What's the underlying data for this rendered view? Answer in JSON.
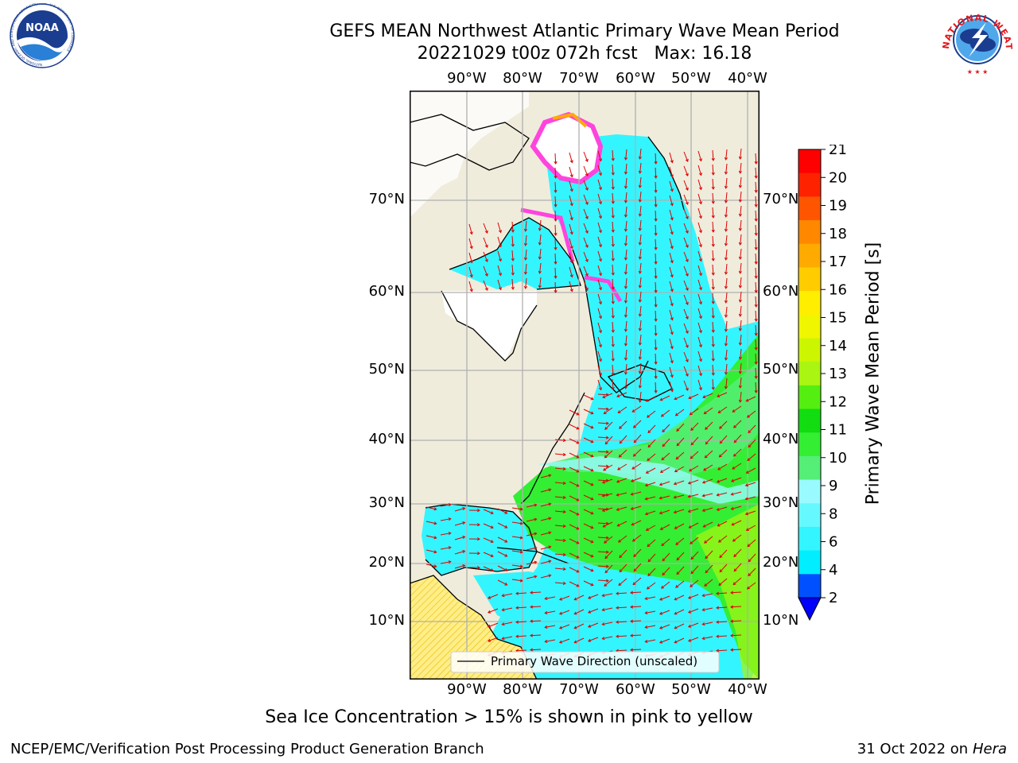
{
  "header": {
    "title_line1": "GEFS MEAN Northwest Atlantic Primary Wave Mean Period",
    "title_line2": "20221029 t00z 072h fcst   Max: 16.18"
  },
  "map": {
    "lon_ticks": [
      "90°W",
      "80°W",
      "70°W",
      "60°W",
      "50°W",
      "40°W"
    ],
    "lat_ticks": [
      "70°N",
      "60°N",
      "50°N",
      "40°N",
      "30°N",
      "20°N",
      "10°N"
    ],
    "legend_label": "Primary Wave Direction (unscaled)",
    "land_color": "#efecdc",
    "ice_color": "#ffffff",
    "arrow_color": "#e00000"
  },
  "colorbar": {
    "label": "Primary Wave Mean Period [s]",
    "ticks": [
      "2",
      "4",
      "6",
      "8",
      "9",
      "10",
      "11",
      "12",
      "13",
      "14",
      "15",
      "16",
      "17",
      "18",
      "19",
      "20",
      "21"
    ],
    "colors": [
      "#0050ff",
      "#00eeff",
      "#33f5ff",
      "#66f8ff",
      "#99fbff",
      "#55ee77",
      "#33ee33",
      "#11dd11",
      "#55ee11",
      "#aaf511",
      "#ccf500",
      "#f0f500",
      "#ffee00",
      "#ffcc00",
      "#ffaa00",
      "#ff8800",
      "#ff5500",
      "#ff2200",
      "#ff0000"
    ],
    "extend_color": "#0000ff"
  },
  "footnote": "Sea Ice Concentration > 15% is shown in pink to yellow",
  "footer": {
    "credit": "NCEP/EMC/Verification Post Processing Product Generation Branch",
    "date": "31 Oct 2022 on ",
    "machine": "Hera"
  },
  "logos": {
    "noaa_text": "NOAA",
    "noaa_ring": "NATIONAL OCEANIC AND ATMOSPHERIC ADMINISTRATION · U.S. DEPARTMENT OF COMMERCE",
    "nws_ring": "NATIONAL WEATHER SERVICE"
  }
}
